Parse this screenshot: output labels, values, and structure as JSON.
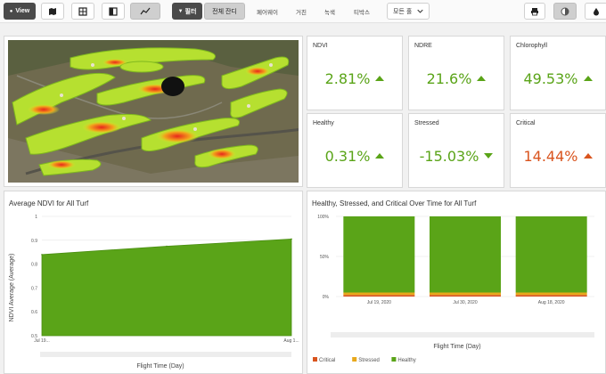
{
  "toolbar": {
    "view_label": "View",
    "filter_label": "필터",
    "tabs": [
      "전체 잔디",
      "페어웨이",
      "거친",
      "녹색",
      "티박스"
    ],
    "dropdown_label": "모든 홀"
  },
  "kpis": [
    {
      "label": "NDVI",
      "value": "2.81%",
      "trend": "up"
    },
    {
      "label": "NDRE",
      "value": "21.6%",
      "trend": "up"
    },
    {
      "label": "Chlorophyll",
      "value": "49.53%",
      "trend": "up"
    },
    {
      "label": "Healthy",
      "value": "0.31%",
      "trend": "up"
    },
    {
      "label": "Stressed",
      "value": "-15.03%",
      "trend": "down"
    },
    {
      "label": "Critical",
      "value": "14.44%",
      "trend": "up-red"
    }
  ],
  "colors": {
    "accent_green": "#5aa418",
    "accent_red": "#d9541e",
    "area_green": "#5aa418",
    "critical": "#d9541e",
    "stressed": "#e8a81c",
    "healthy": "#5aa418"
  },
  "chart_data": [
    {
      "type": "area",
      "title": "Average NDVI for All Turf",
      "xlabel": "Flight Time (Day)",
      "ylabel": "NDVI Average (Average)",
      "x_tick_labels": [
        "Jul 19...",
        "Aug 1..."
      ],
      "y_ticks": [
        "1",
        "0.9",
        "0.8",
        "0.7",
        "0.6",
        "0.5"
      ],
      "ylim": [
        0.5,
        1
      ],
      "x": [
        "Jul 19, 2020",
        "Jul 30, 2020",
        "Aug 18, 2020"
      ],
      "values": [
        0.84,
        0.875,
        0.905
      ],
      "grid": true
    },
    {
      "type": "bar",
      "title": "Healthy, Stressed, and Critical Over Time for All Turf",
      "xlabel": "Flight Time (Day)",
      "categories": [
        "Jul 19, 2020",
        "Jul 30, 2020",
        "Aug 18, 2020"
      ],
      "y_ticks": [
        "100%",
        "50%",
        "0%"
      ],
      "ylim": [
        0,
        100
      ],
      "stacked": true,
      "series": [
        {
          "name": "Critical",
          "values": [
            2,
            2,
            2
          ]
        },
        {
          "name": "Stressed",
          "values": [
            3,
            3,
            3
          ]
        },
        {
          "name": "Healthy",
          "values": [
            95,
            95,
            95
          ]
        }
      ],
      "legend_position": "bottom-left"
    }
  ]
}
